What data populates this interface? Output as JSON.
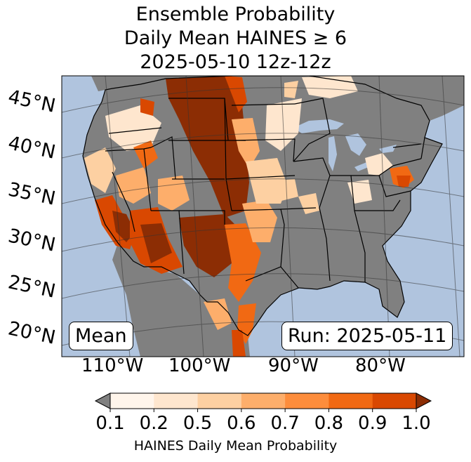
{
  "title": {
    "line1": "Ensemble Probability",
    "line2": "Daily Mean HAINES ≥ 6",
    "line3": "2025-05-10 12z-12z"
  },
  "latitude_labels": [
    "45°N",
    "40°N",
    "35°N",
    "30°N",
    "25°N",
    "20°N"
  ],
  "longitude_labels": [
    "110°W",
    "100°W",
    "90°W",
    "80°W"
  ],
  "stat_label": "Mean",
  "run_label": "Run: 2025-05-11",
  "colorbar": {
    "ticks": [
      "0.1",
      "0.2",
      "0.5",
      "0.6",
      "0.7",
      "0.8",
      "0.9",
      "1.0"
    ],
    "colors": [
      "#fff5eb",
      "#fee6ce",
      "#fdd0a2",
      "#fdae6b",
      "#fd8d3c",
      "#f16913",
      "#d94801",
      "#a63603"
    ],
    "under_color": "#808080",
    "over_color": "#8c2d04",
    "label": "HAINES Daily Mean Probability"
  },
  "map_colors": {
    "ocean": "#b0c4de",
    "land_low": "#808080",
    "lakes": "#b0c4de"
  }
}
